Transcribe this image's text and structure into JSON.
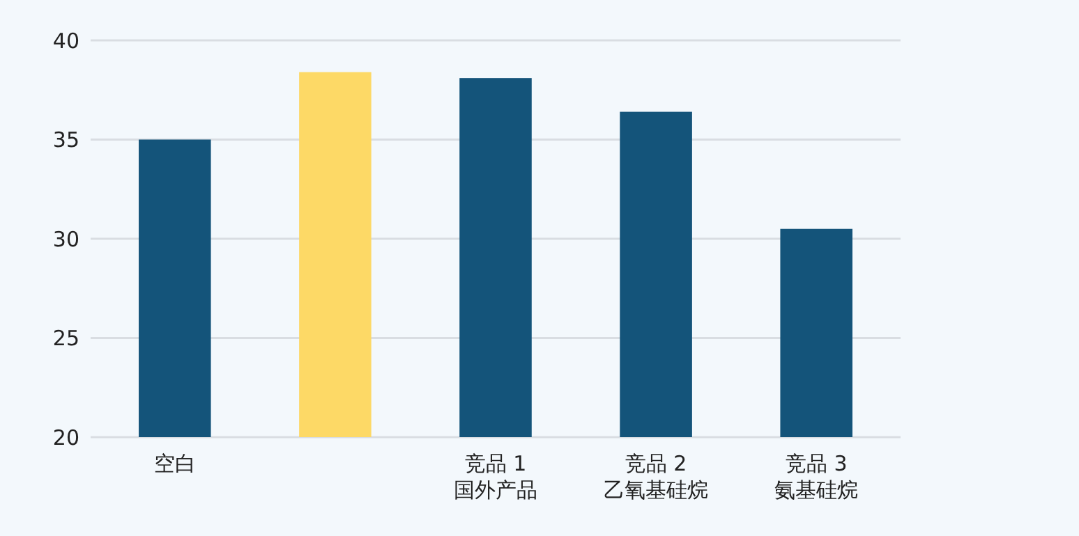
{
  "chart_data": {
    "type": "bar",
    "categories": [
      "空白",
      null,
      "竞品 1\n国外产品",
      "竞品 2\n乙氧基硅烷",
      "竞品 3\n氨基硅烷"
    ],
    "values": [
      35.0,
      38.4,
      38.1,
      36.4,
      30.5
    ],
    "colors": [
      "#14547a",
      "#fdd966",
      "#14547a",
      "#14547a",
      "#14547a"
    ],
    "ylim": [
      20,
      40
    ],
    "yticks": [
      20,
      25,
      30,
      35,
      40
    ],
    "grid": "y"
  }
}
